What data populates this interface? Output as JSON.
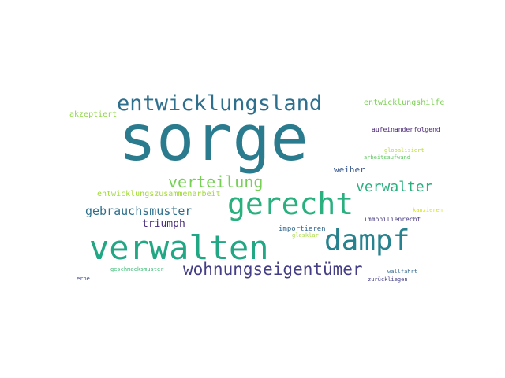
{
  "words": [
    {
      "text": "sorge",
      "color": "#2a7b8e"
    },
    {
      "text": "entwicklungsland",
      "color": "#2e6f8e"
    },
    {
      "text": "gerecht",
      "color": "#2ab07f"
    },
    {
      "text": "verwalten",
      "color": "#22a785"
    },
    {
      "text": "dampf",
      "color": "#26828e"
    },
    {
      "text": "wohnungseigentümer",
      "color": "#433e85"
    },
    {
      "text": "verteilung",
      "color": "#75d054"
    },
    {
      "text": "verwalter",
      "color": "#2ab07f"
    },
    {
      "text": "gebrauchsmuster",
      "color": "#2d708e"
    },
    {
      "text": "triumph",
      "color": "#472c7a"
    },
    {
      "text": "entwicklungshilfe",
      "color": "#7ad151"
    },
    {
      "text": "akzeptiert",
      "color": "#8ed645"
    },
    {
      "text": "aufeinanderfolgend",
      "color": "#482475"
    },
    {
      "text": "globalisiert",
      "color": "#b5de2b"
    },
    {
      "text": "arbeitsaufwand",
      "color": "#5ec962"
    },
    {
      "text": "weiher",
      "color": "#39568c"
    },
    {
      "text": "entwicklungszusammenarbeit",
      "color": "#a2da37"
    },
    {
      "text": "kanzieren",
      "color": "#d8e219"
    },
    {
      "text": "immobilienrecht",
      "color": "#453781"
    },
    {
      "text": "importieren",
      "color": "#31668e"
    },
    {
      "text": "glasklar",
      "color": "#a5db36"
    },
    {
      "text": "geschmacksmuster",
      "color": "#3bbb75"
    },
    {
      "text": "wallfahrt",
      "color": "#31688e"
    },
    {
      "text": "erbe",
      "color": "#3e4a89"
    },
    {
      "text": "zurückliegen",
      "color": "#433e85"
    }
  ]
}
